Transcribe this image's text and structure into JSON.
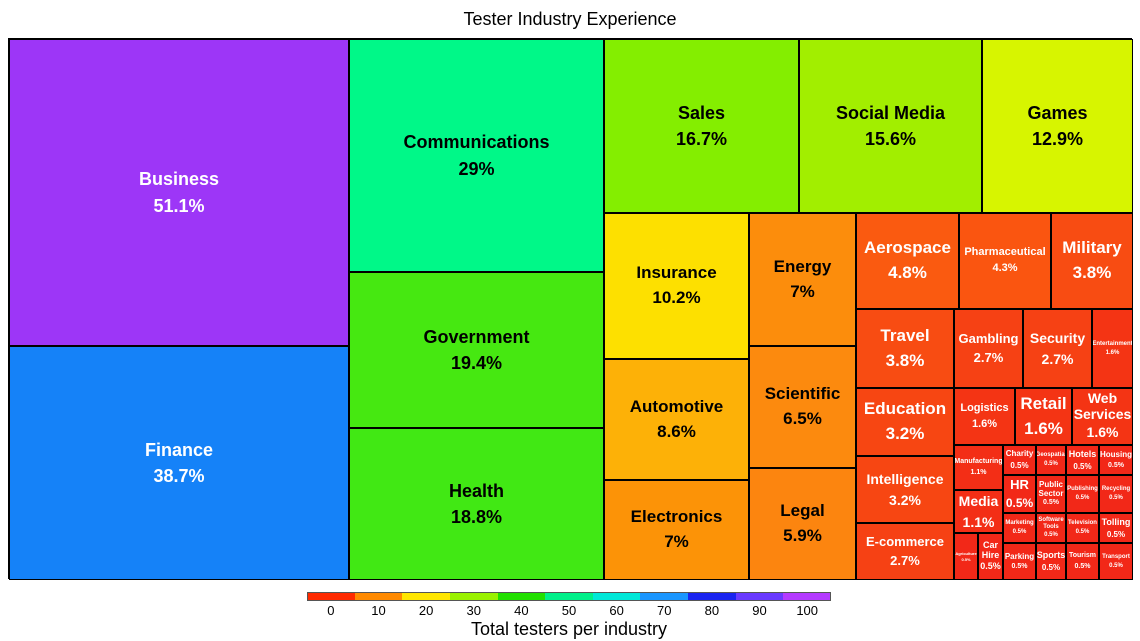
{
  "chart_data": {
    "type": "treemap",
    "title": "Tester Industry Experience",
    "colorbar": {
      "label": "Total testers per industry",
      "ticks": [
        "0",
        "10",
        "20",
        "30",
        "40",
        "50",
        "60",
        "70",
        "80",
        "90",
        "100"
      ],
      "colors": [
        "#ff2a00",
        "#ff8a00",
        "#ffe600",
        "#9af200",
        "#22e000",
        "#00f08a",
        "#00e8d8",
        "#1a96ff",
        "#1a24f0",
        "#6a3aff",
        "#b43aff"
      ]
    },
    "items": [
      {
        "name": "Business",
        "value": 51.1,
        "label": "51.1%",
        "color": "#9d36f7"
      },
      {
        "name": "Finance",
        "value": 38.7,
        "label": "38.7%",
        "color": "#1582f8"
      },
      {
        "name": "Communications",
        "value": 29,
        "label": "29%",
        "color": "#00f888"
      },
      {
        "name": "Government",
        "value": 19.4,
        "label": "19.4%",
        "color": "#46e811"
      },
      {
        "name": "Health",
        "value": 18.8,
        "label": "18.8%",
        "color": "#41e814"
      },
      {
        "name": "Sales",
        "value": 16.7,
        "label": "16.7%",
        "color": "#84ee00"
      },
      {
        "name": "Social Media",
        "value": 15.6,
        "label": "15.6%",
        "color": "#a2ee00"
      },
      {
        "name": "Games",
        "value": 12.9,
        "label": "12.9%",
        "color": "#d7f500"
      },
      {
        "name": "Insurance",
        "value": 10.2,
        "label": "10.2%",
        "color": "#fde000"
      },
      {
        "name": "Energy",
        "value": 7,
        "label": "7%",
        "color": "#fc8d0c"
      },
      {
        "name": "Automotive",
        "value": 8.6,
        "label": "8.6%",
        "color": "#fdb107"
      },
      {
        "name": "Scientific",
        "value": 6.5,
        "label": "6.5%",
        "color": "#fc8a0e"
      },
      {
        "name": "Electronics",
        "value": 7,
        "label": "7%",
        "color": "#fc9307"
      },
      {
        "name": "Legal",
        "value": 5.9,
        "label": "5.9%",
        "color": "#fc850f"
      },
      {
        "name": "Aerospace",
        "value": 4.8,
        "label": "4.8%",
        "color": "#fa5a10"
      },
      {
        "name": "Pharmaceutical",
        "value": 4.3,
        "label": "4.3%",
        "color": "#fa5510"
      },
      {
        "name": "Military",
        "value": 3.8,
        "label": "3.8%",
        "color": "#f84c12"
      },
      {
        "name": "Travel",
        "value": 3.8,
        "label": "3.8%",
        "color": "#f84c12"
      },
      {
        "name": "Gambling",
        "value": 2.7,
        "label": "2.7%",
        "color": "#f64114"
      },
      {
        "name": "Security",
        "value": 2.7,
        "label": "2.7%",
        "color": "#f64114"
      },
      {
        "name": "Entertainment",
        "value": 1.6,
        "label": "1.6%",
        "color": "#f43414"
      },
      {
        "name": "Education",
        "value": 3.2,
        "label": "3.2%",
        "color": "#f74612"
      },
      {
        "name": "Logistics",
        "value": 1.6,
        "label": "1.6%",
        "color": "#f43414"
      },
      {
        "name": "Retail",
        "value": 1.6,
        "label": "1.6%",
        "color": "#f43414"
      },
      {
        "name": "Web Services",
        "value": 1.6,
        "label": "1.6%",
        "color": "#f43414"
      },
      {
        "name": "Intelligence",
        "value": 3.2,
        "label": "3.2%",
        "color": "#f74612"
      },
      {
        "name": "Manufacturing",
        "value": 1.1,
        "label": "1.1%",
        "color": "#f32e16"
      },
      {
        "name": "Charity",
        "value": 0.5,
        "label": "0.5%",
        "color": "#f22818"
      },
      {
        "name": "Geospatial",
        "value": 0.5,
        "label": "0.5%",
        "color": "#f22818"
      },
      {
        "name": "Hotels",
        "value": 0.5,
        "label": "0.5%",
        "color": "#f22818"
      },
      {
        "name": "Housing",
        "value": 0.5,
        "label": "0.5%",
        "color": "#f22818"
      },
      {
        "name": "Media",
        "value": 1.1,
        "label": "1.1%",
        "color": "#f32e16"
      },
      {
        "name": "HR",
        "value": 0.5,
        "label": "0.5%",
        "color": "#f22818"
      },
      {
        "name": "Public Sector",
        "value": 0.5,
        "label": "0.5%",
        "color": "#f22818"
      },
      {
        "name": "Publishing",
        "value": 0.5,
        "label": "0.5%",
        "color": "#f22818"
      },
      {
        "name": "Recycling",
        "value": 0.5,
        "label": "0.5%",
        "color": "#f22818"
      },
      {
        "name": "E-commerce",
        "value": 2.7,
        "label": "2.7%",
        "color": "#f64114"
      },
      {
        "name": "Marketing",
        "value": 0.5,
        "label": "0.5%",
        "color": "#f22818"
      },
      {
        "name": "Software Tools",
        "value": 0.5,
        "label": "0.5%",
        "color": "#f22818"
      },
      {
        "name": "Television",
        "value": 0.5,
        "label": "0.5%",
        "color": "#f22818"
      },
      {
        "name": "Tolling",
        "value": 0.5,
        "label": "0.5%",
        "color": "#f22818"
      },
      {
        "name": "Agriculture",
        "value": 0.5,
        "label": "0.5%",
        "color": "#f22818"
      },
      {
        "name": "Car Hire",
        "value": 0.5,
        "label": "0.5%",
        "color": "#f22818"
      },
      {
        "name": "Parking",
        "value": 0.5,
        "label": "0.5%",
        "color": "#f22818"
      },
      {
        "name": "Sports",
        "value": 0.5,
        "label": "0.5%",
        "color": "#f22818"
      },
      {
        "name": "Tourism",
        "value": 0.5,
        "label": "0.5%",
        "color": "#f22818"
      },
      {
        "name": "Transport",
        "value": 0.5,
        "label": "0.5%",
        "color": "#f22818"
      }
    ]
  }
}
